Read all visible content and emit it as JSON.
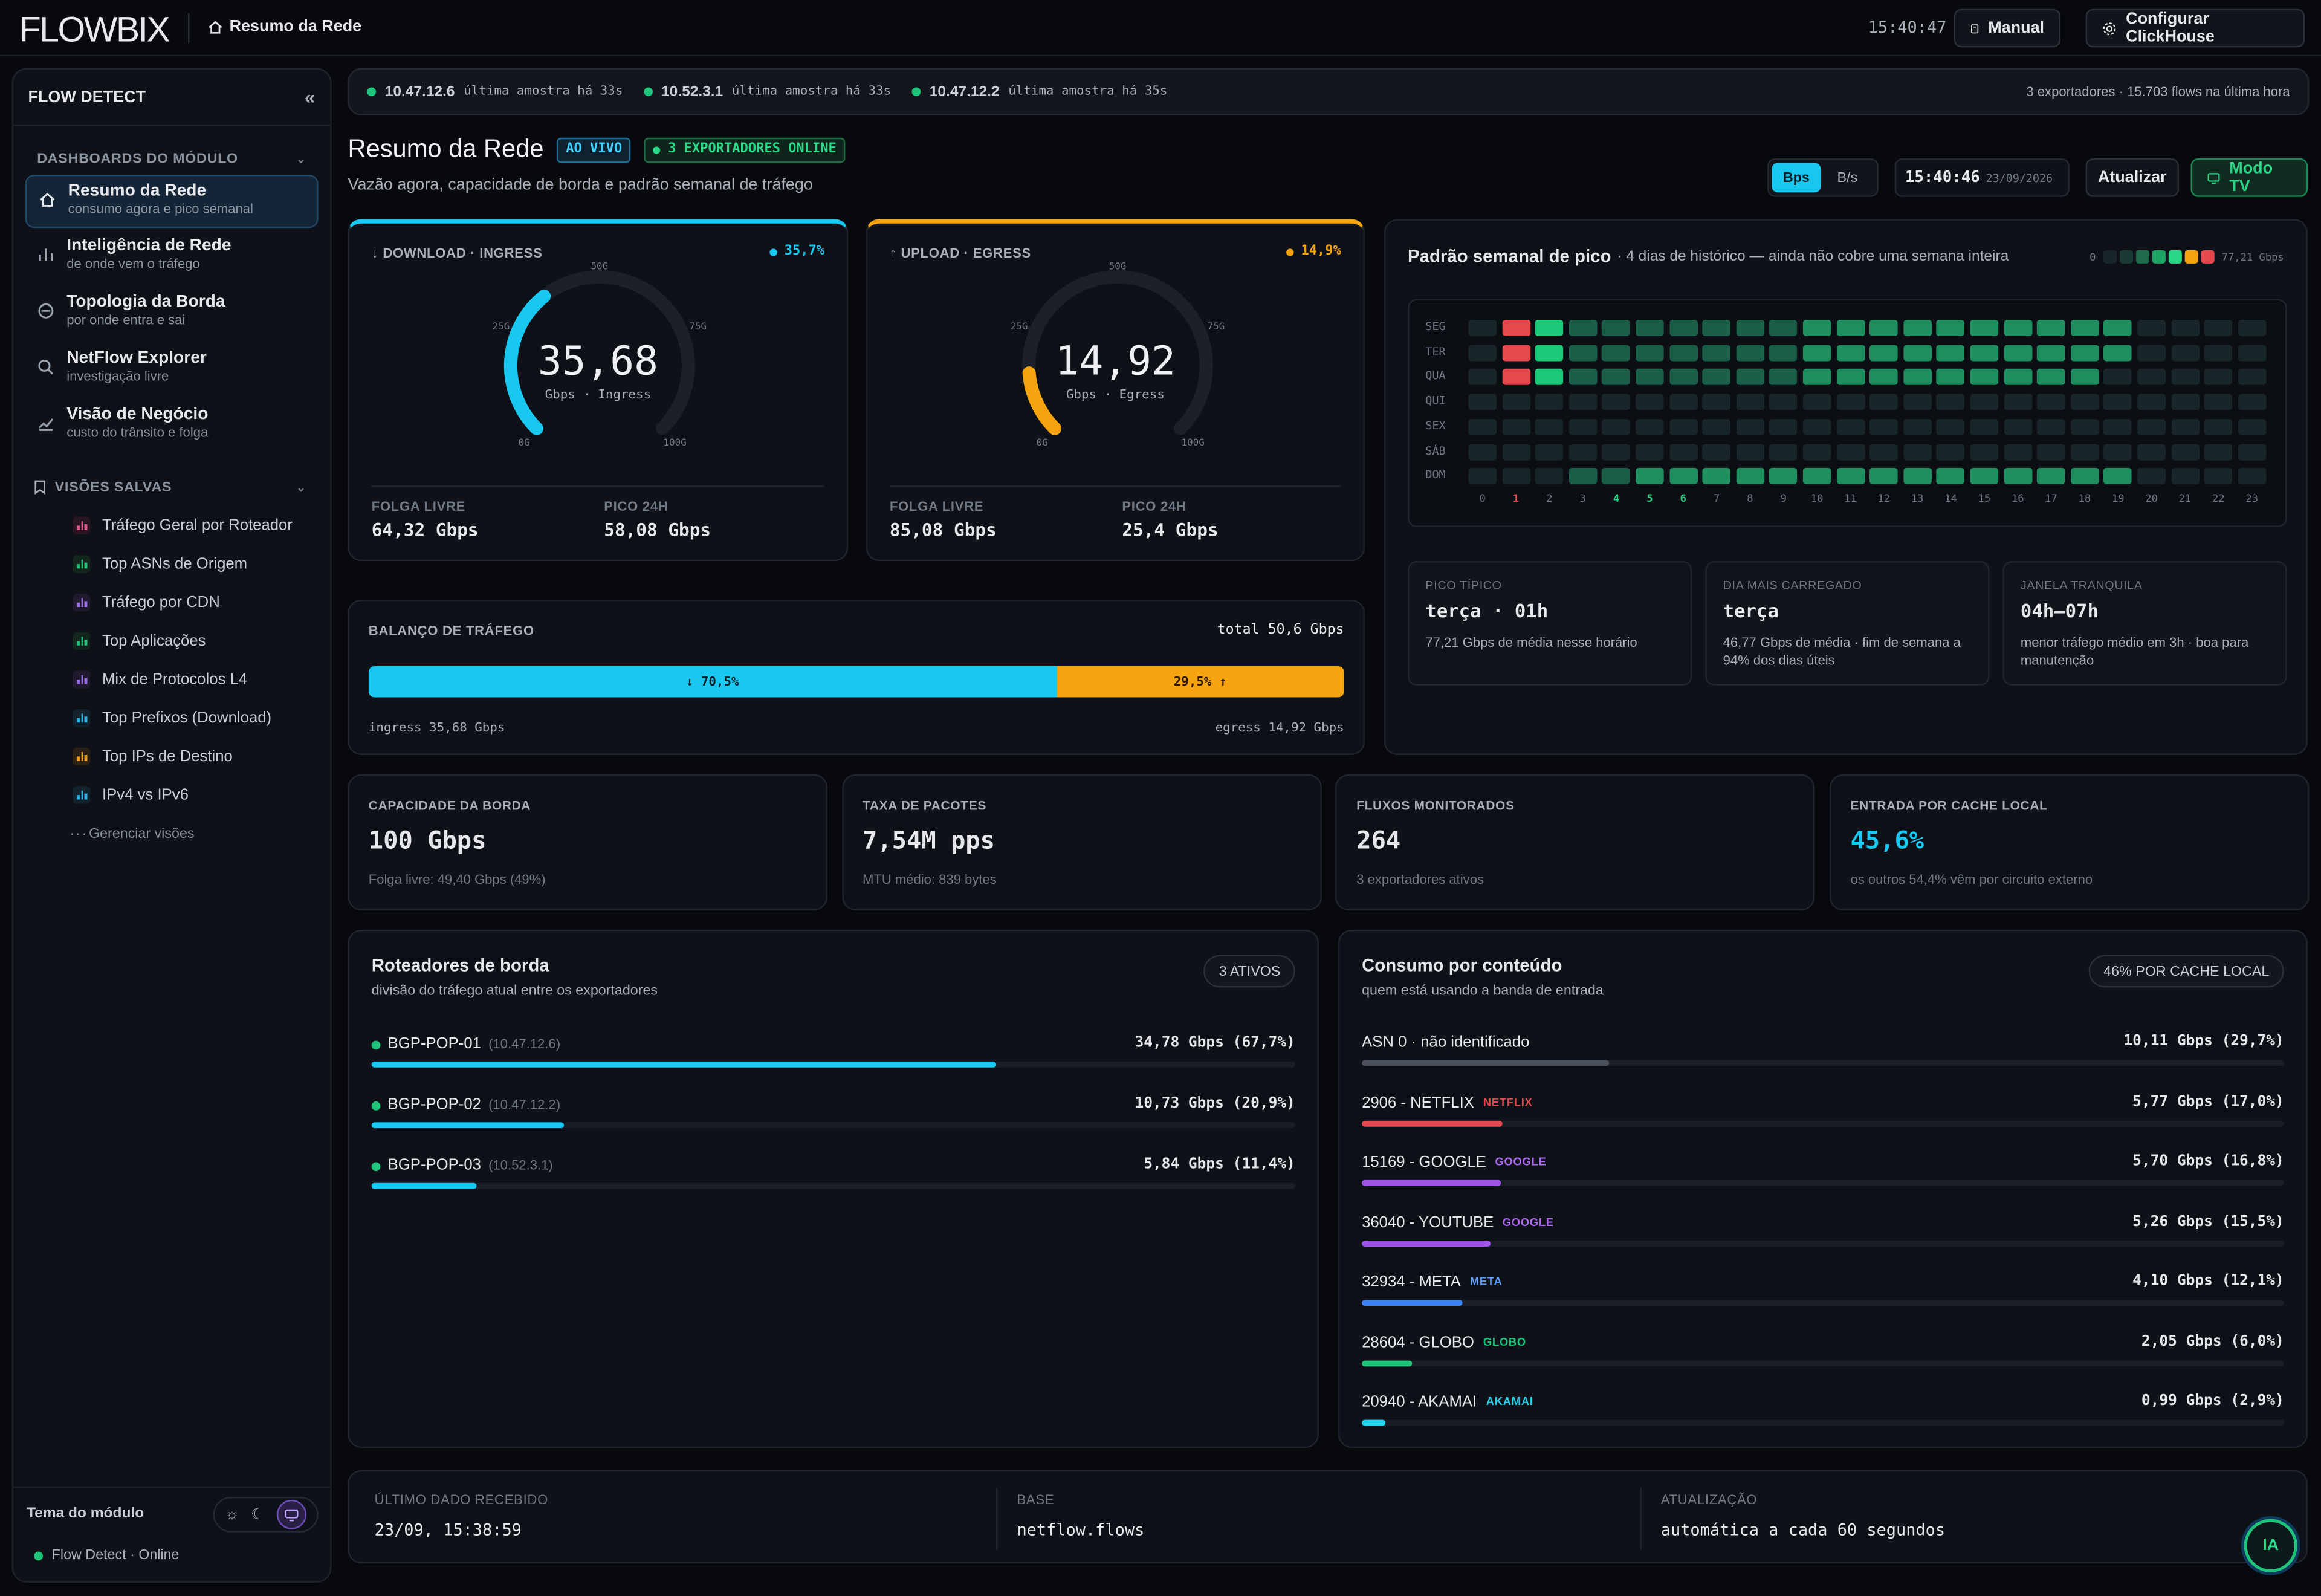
{
  "app": {
    "logo": "FLOWBIX",
    "breadcrumb": "Resumo da Rede",
    "clock": "15:40:47",
    "manual_label": "Manual",
    "config_label": "Configurar ClickHouse"
  },
  "sidebar": {
    "title": "FLOW DETECT",
    "collapse": "«",
    "section_dash": "DASHBOARDS DO MÓDULO",
    "items": [
      {
        "label": "Resumo da Rede",
        "sub": "consumo agora e pico semanal",
        "icon": "home-icon"
      },
      {
        "label": "Inteligência de Rede",
        "sub": "de onde vem o tráfego",
        "icon": "bar-chart-icon"
      },
      {
        "label": "Topologia da Borda",
        "sub": "por onde entra e sai",
        "icon": "topology-icon"
      },
      {
        "label": "NetFlow Explorer",
        "sub": "investigação livre",
        "icon": "search-icon"
      },
      {
        "label": "Visão de Negócio",
        "sub": "custo do trânsito e folga",
        "icon": "trend-icon"
      }
    ],
    "section_saved": "VISÕES SALVAS",
    "saved": [
      {
        "label": "Tráfego Geral por Roteador",
        "color": "#e35a8c",
        "bg": "#2a1622"
      },
      {
        "label": "Top ASNs de Origem",
        "color": "#1fc47a",
        "bg": "#13261d"
      },
      {
        "label": "Tráfego por CDN",
        "color": "#9a6ee8",
        "bg": "#1f1a2e"
      },
      {
        "label": "Top Aplicações",
        "color": "#1fc47a",
        "bg": "#13261d"
      },
      {
        "label": "Mix de Protocolos L4",
        "color": "#9a6ee8",
        "bg": "#1f1a2e"
      },
      {
        "label": "Top Prefixos (Download)",
        "color": "#2cb6e8",
        "bg": "#12232d"
      },
      {
        "label": "Top IPs de Destino",
        "color": "#f0a020",
        "bg": "#2a2114"
      },
      {
        "label": "IPv4 vs IPv6",
        "color": "#2cb6e8",
        "bg": "#12232d"
      }
    ],
    "manage": "Gerenciar visões",
    "theme_label": "Tema do módulo",
    "status": "Flow Detect · Online"
  },
  "exporters_bar": {
    "items": [
      {
        "ip": "10.47.12.6",
        "text": "última amostra há 33s"
      },
      {
        "ip": "10.52.3.1",
        "text": "última amostra há 33s"
      },
      {
        "ip": "10.47.12.2",
        "text": "última amostra há 35s"
      }
    ],
    "summary": "3 exportadores · 15.703 flows na última hora"
  },
  "page": {
    "title": "Resumo da Rede",
    "live": "AO VIVO",
    "exporters_online": "3 EXPORTADORES ONLINE",
    "subtitle": "Vazão agora, capacidade de borda e padrão semanal de tráfego",
    "unit_bps": "Bps",
    "unit_bs": "B/s",
    "time": "15:40:46",
    "date": "23/09/2026",
    "refresh": "Atualizar",
    "tv": "Modo TV"
  },
  "download": {
    "label": "↓ DOWNLOAD · INGRESS",
    "pct_label": "35,7%",
    "pct": 0.357,
    "value": "35,68",
    "unit": "Gbps · Ingress",
    "t0": "0G",
    "t25": "25G",
    "t50": "50G",
    "t75": "75G",
    "t100": "100G",
    "free_label": "FOLGA LIVRE",
    "free": "64,32 Gbps",
    "peak_label": "PICO 24H",
    "peak": "58,08 Gbps"
  },
  "upload": {
    "label": "↑ UPLOAD · EGRESS",
    "pct_label": "14,9%",
    "pct": 0.149,
    "value": "14,92",
    "unit": "Gbps · Egress",
    "t0": "0G",
    "t25": "25G",
    "t50": "50G",
    "t75": "75G",
    "t100": "100G",
    "free_label": "FOLGA LIVRE",
    "free": "85,08 Gbps",
    "peak_label": "PICO 24H",
    "peak": "25,4 Gbps"
  },
  "balance": {
    "label": "BALANÇO DE TRÁFEGO",
    "total": "total 50,6 Gbps",
    "in_pct": 0.705,
    "in_label": "↓ 70,5%",
    "out_label": "29,5% ↑",
    "in_text": "ingress 35,68 Gbps",
    "out_text": "egress 14,92 Gbps"
  },
  "heatmap": {
    "title": "Padrão semanal de pico",
    "subtitle": "· 4 dias de histórico — ainda não cobre uma semana inteira",
    "legend_min": "0",
    "legend_max": "77,21 Gbps",
    "days": [
      "SEG",
      "TER",
      "QUA",
      "QUI",
      "SEX",
      "SÁB",
      "DOM"
    ],
    "hours": [
      "0",
      "1",
      "2",
      "3",
      "4",
      "5",
      "6",
      "7",
      "8",
      "9",
      "10",
      "11",
      "12",
      "13",
      "14",
      "15",
      "16",
      "17",
      "18",
      "19",
      "20",
      "21",
      "22",
      "23"
    ],
    "highlight_hours": [
      1,
      4,
      5,
      6
    ],
    "levels": [
      [
        0,
        5,
        3,
        1,
        1,
        1,
        1,
        1,
        1,
        1,
        2,
        2,
        2,
        2,
        2,
        2,
        2,
        2,
        2,
        2,
        0,
        0,
        0,
        0
      ],
      [
        0,
        5,
        3,
        1,
        1,
        1,
        1,
        1,
        1,
        1,
        2,
        2,
        2,
        2,
        2,
        2,
        2,
        2,
        2,
        2,
        0,
        0,
        0,
        0
      ],
      [
        0,
        5,
        3,
        1,
        1,
        1,
        1,
        1,
        1,
        1,
        2,
        2,
        2,
        2,
        2,
        2,
        2,
        2,
        2,
        0,
        0,
        0,
        0,
        0
      ],
      [
        0,
        0,
        0,
        0,
        0,
        0,
        0,
        0,
        0,
        0,
        0,
        0,
        0,
        0,
        0,
        0,
        0,
        0,
        0,
        0,
        0,
        0,
        0,
        0
      ],
      [
        0,
        0,
        0,
        0,
        0,
        0,
        0,
        0,
        0,
        0,
        0,
        0,
        0,
        0,
        0,
        0,
        0,
        0,
        0,
        0,
        0,
        0,
        0,
        0
      ],
      [
        0,
        0,
        0,
        0,
        0,
        0,
        0,
        0,
        0,
        0,
        0,
        0,
        0,
        0,
        0,
        0,
        0,
        0,
        0,
        0,
        0,
        0,
        0,
        0
      ],
      [
        0,
        0,
        0,
        1,
        1,
        2,
        2,
        2,
        2,
        2,
        2,
        2,
        2,
        2,
        2,
        2,
        2,
        2,
        2,
        2,
        0,
        0,
        0,
        0
      ]
    ]
  },
  "insights": [
    {
      "label": "PICO TÍPICO",
      "value": "terça · 01h",
      "sub": "77,21 Gbps de média nesse horário"
    },
    {
      "label": "DIA MAIS CARREGADO",
      "value": "terça",
      "sub": "46,77 Gbps de média · fim de semana a 94% dos dias úteis"
    },
    {
      "label": "JANELA TRANQUILA",
      "value": "04h–07h",
      "sub": "menor tráfego médio em 3h · boa para manutenção"
    }
  ],
  "kpis": [
    {
      "label": "CAPACIDADE DA BORDA",
      "value": "100 Gbps",
      "sub": "Folga livre: 49,40 Gbps (49%)",
      "accent": false
    },
    {
      "label": "TAXA DE PACOTES",
      "value": "7,54M pps",
      "sub": "MTU médio: 839 bytes",
      "accent": false
    },
    {
      "label": "FLUXOS MONITORADOS",
      "value": "264",
      "sub": "3 exportadores ativos",
      "accent": false
    },
    {
      "label": "ENTRADA POR CACHE LOCAL",
      "value": "45,6%",
      "sub": "os outros 54,4% vêm por circuito externo",
      "accent": true
    }
  ],
  "routers": {
    "title": "Roteadores de borda",
    "sub": "divisão do tráfego atual entre os exportadores",
    "badge": "3 ATIVOS",
    "rows": [
      {
        "name": "BGP-POP-01",
        "ip": "(10.47.12.6)",
        "value": "34,78 Gbps (67,7%)",
        "frac": 0.677
      },
      {
        "name": "BGP-POP-02",
        "ip": "(10.47.12.2)",
        "value": "10,73 Gbps (20,9%)",
        "frac": 0.209
      },
      {
        "name": "BGP-POP-03",
        "ip": "(10.52.3.1)",
        "value": "5,84 Gbps (11,4%)",
        "frac": 0.114
      }
    ]
  },
  "content": {
    "title": "Consumo por conteúdo",
    "sub": "quem está usando a banda de entrada",
    "badge": "46% POR CACHE LOCAL",
    "rows": [
      {
        "name": "ASN 0 · não identificado",
        "tag": "",
        "value": "10,11 Gbps (29,7%)",
        "frac": 0.297,
        "color": "#4b525d",
        "tagcolor": "#4b525d"
      },
      {
        "name": "2906 - NETFLIX",
        "tag": "NETFLIX",
        "value": "5,77 Gbps (17,0%)",
        "frac": 0.17,
        "color": "#e5484d",
        "tagcolor": "#e5484d"
      },
      {
        "name": "15169 - GOOGLE",
        "tag": "GOOGLE",
        "value": "5,70 Gbps (16,8%)",
        "frac": 0.168,
        "color": "#a155e8",
        "tagcolor": "#b06cf0"
      },
      {
        "name": "36040 - YOUTUBE",
        "tag": "GOOGLE",
        "value": "5,26 Gbps (15,5%)",
        "frac": 0.155,
        "color": "#a155e8",
        "tagcolor": "#b06cf0"
      },
      {
        "name": "32934 - META",
        "tag": "META",
        "value": "4,10 Gbps (12,1%)",
        "frac": 0.121,
        "color": "#3b82f6",
        "tagcolor": "#5b9cf8"
      },
      {
        "name": "28604 - GLOBO",
        "tag": "GLOBO",
        "value": "2,05 Gbps (6,0%)",
        "frac": 0.06,
        "color": "#1fc47a",
        "tagcolor": "#1fc47a"
      },
      {
        "name": "20940 - AKAMAI",
        "tag": "AKAMAI",
        "value": "0,99 Gbps (2,9%)",
        "frac": 0.029,
        "color": "#22d3ee",
        "tagcolor": "#22d3ee"
      }
    ]
  },
  "footer": {
    "last_label": "ÚLTIMO DADO RECEBIDO",
    "last": "23/09, 15:38:59",
    "base_label": "BASE",
    "base": "netflow.flows",
    "upd_label": "ATUALIZAÇÃO",
    "upd": "automática a cada 60 segundos",
    "ai": "IA"
  },
  "colors": {
    "ingress": "#18c8f0",
    "egress": "#f5a30f",
    "ok": "#1fc47a"
  }
}
